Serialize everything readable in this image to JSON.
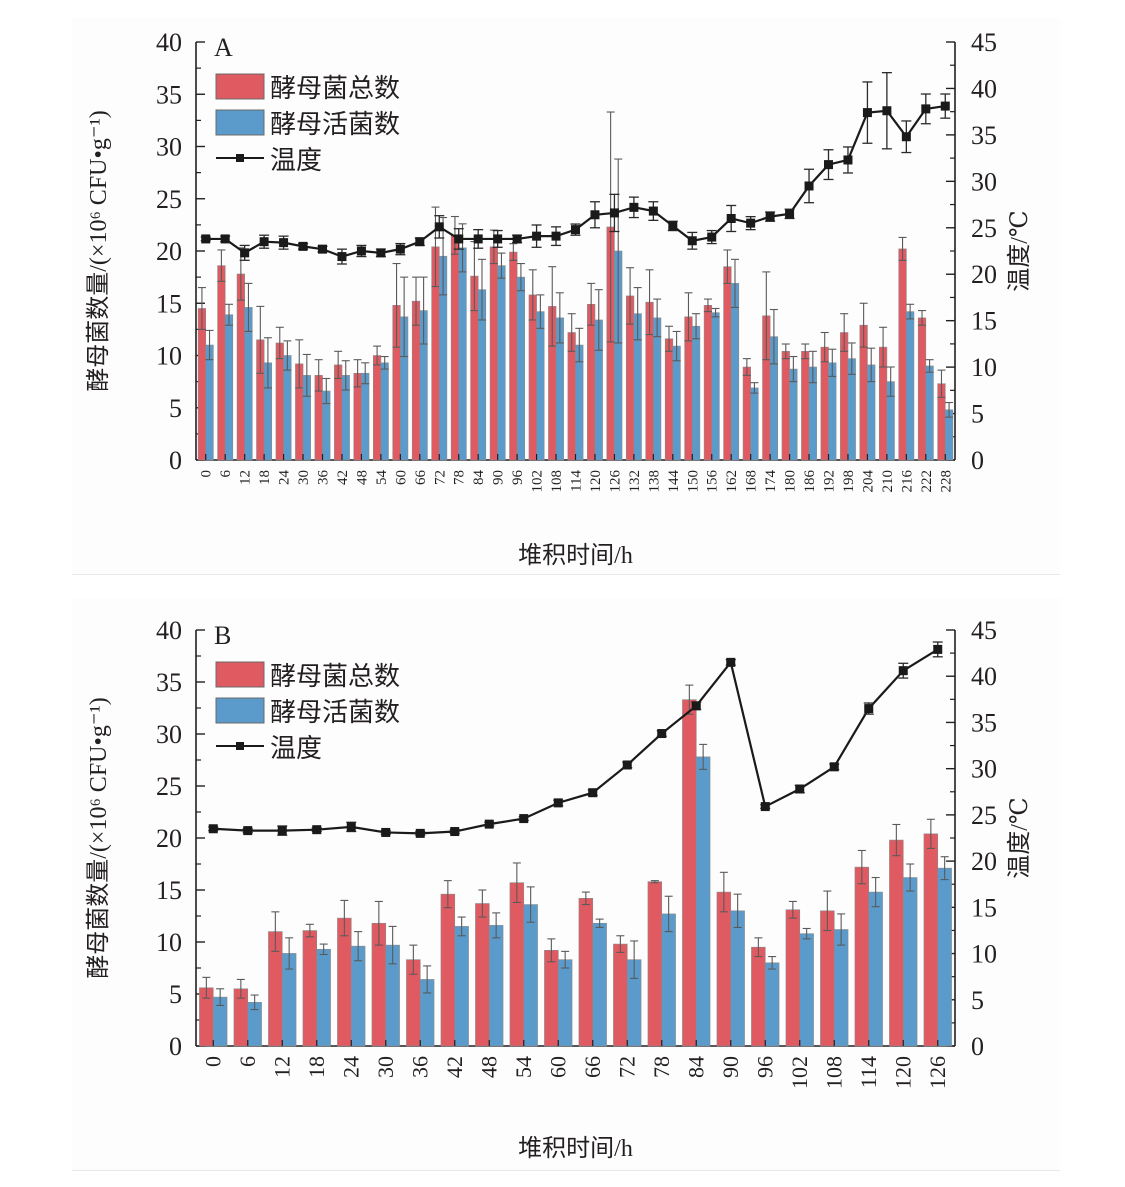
{
  "chart_data": [
    {
      "type": "bar",
      "panel_label": "A",
      "title": "",
      "xlabel": "堆积时间/h",
      "ylabel": "酵母菌数量/(×10⁶ CFU•g⁻¹)",
      "y2label": "温度/℃",
      "ylim": [
        0,
        40
      ],
      "y2lim": [
        0,
        45
      ],
      "yticks": [
        "0",
        "5",
        "10",
        "15",
        "20",
        "25",
        "30",
        "35",
        "40"
      ],
      "y2ticks": [
        "0",
        "5",
        "10",
        "15",
        "20",
        "25",
        "30",
        "35",
        "40",
        "45"
      ],
      "legend_position": "top-left",
      "grid": false,
      "categories": [
        "0",
        "6",
        "12",
        "18",
        "24",
        "30",
        "36",
        "42",
        "48",
        "54",
        "60",
        "66",
        "72",
        "78",
        "84",
        "90",
        "96",
        "102",
        "108",
        "114",
        "120",
        "126",
        "132",
        "138",
        "144",
        "150",
        "156",
        "162",
        "168",
        "174",
        "180",
        "186",
        "192",
        "198",
        "204",
        "210",
        "216",
        "222",
        "228"
      ],
      "series": [
        {
          "name": "酵母菌总数",
          "type": "bar",
          "axis": "left",
          "color": "#e05a62",
          "values": [
            14.5,
            18.6,
            17.8,
            11.5,
            11.2,
            9.2,
            8.1,
            9.1,
            8.3,
            10.0,
            14.8,
            15.2,
            20.4,
            21.5,
            17.6,
            20.4,
            19.9,
            15.8,
            14.7,
            12.2,
            14.9,
            22.3,
            15.7,
            15.1,
            11.6,
            13.7,
            14.8,
            18.5,
            8.9,
            13.8,
            10.4,
            10.4,
            10.8,
            12.2,
            12.9,
            10.8,
            20.2,
            13.6,
            7.3
          ],
          "errors": [
            2.0,
            1.5,
            2.5,
            3.2,
            1.5,
            2.3,
            1.5,
            1.3,
            1.3,
            0.9,
            4.0,
            2.3,
            3.8,
            1.8,
            3.3,
            1.6,
            0.8,
            2.4,
            3.8,
            1.8,
            2.0,
            11.0,
            2.7,
            3.1,
            1.2,
            2.3,
            0.6,
            1.6,
            0.8,
            4.2,
            0.7,
            0.7,
            1.4,
            1.8,
            2.1,
            1.9,
            1.1,
            0.7,
            1.3
          ]
        },
        {
          "name": "酵母活菌数",
          "type": "bar",
          "axis": "left",
          "color": "#5b9bcb",
          "values": [
            11.0,
            13.9,
            14.6,
            9.3,
            10.0,
            8.1,
            6.6,
            8.1,
            8.3,
            9.3,
            13.7,
            14.3,
            19.5,
            20.3,
            16.3,
            18.6,
            17.5,
            14.2,
            13.6,
            11.0,
            13.4,
            20.0,
            14.0,
            13.6,
            10.9,
            12.8,
            14.1,
            16.9,
            6.9,
            11.8,
            8.7,
            8.9,
            9.3,
            9.7,
            9.1,
            7.5,
            14.2,
            9.0,
            4.8
          ],
          "errors": [
            1.4,
            1.0,
            2.3,
            2.4,
            1.4,
            2.0,
            1.2,
            1.4,
            1.0,
            0.6,
            3.8,
            3.2,
            3.7,
            2.3,
            2.9,
            1.2,
            1.3,
            1.6,
            2.4,
            1.6,
            2.9,
            8.8,
            2.5,
            1.8,
            1.4,
            1.2,
            0.4,
            2.3,
            0.5,
            2.6,
            1.2,
            1.5,
            1.3,
            1.5,
            1.6,
            1.4,
            0.7,
            0.6,
            0.7
          ]
        },
        {
          "name": "温度",
          "type": "line",
          "axis": "right",
          "color": "#1a1a1a",
          "values": [
            23.8,
            23.8,
            22.3,
            23.5,
            23.4,
            23.0,
            22.7,
            21.9,
            22.5,
            22.3,
            22.7,
            23.5,
            25.1,
            23.8,
            23.8,
            23.8,
            23.8,
            24.1,
            24.1,
            24.8,
            26.4,
            26.6,
            27.2,
            26.8,
            25.2,
            23.6,
            24.0,
            26.0,
            25.5,
            26.2,
            26.5,
            29.5,
            31.8,
            32.3,
            37.4,
            37.6,
            34.8,
            37.8,
            38.1
          ],
          "errors": [
            0.2,
            0.3,
            0.8,
            0.7,
            0.7,
            0.3,
            0.3,
            0.8,
            0.6,
            0.4,
            0.6,
            0.4,
            1.2,
            1.1,
            1.0,
            0.9,
            0.4,
            1.2,
            1.0,
            0.6,
            1.4,
            2.0,
            1.1,
            1.0,
            0.5,
            0.9,
            0.7,
            1.4,
            0.7,
            0.5,
            0.5,
            1.8,
            1.6,
            1.4,
            3.3,
            4.1,
            1.7,
            1.6,
            1.3
          ]
        }
      ]
    },
    {
      "type": "bar",
      "panel_label": "B",
      "title": "",
      "xlabel": "堆积时间/h",
      "ylabel": "酵母菌数量/(×10⁶ CFU•g⁻¹)",
      "y2label": "温度/℃",
      "ylim": [
        0,
        40
      ],
      "y2lim": [
        0,
        45
      ],
      "yticks": [
        "0",
        "5",
        "10",
        "15",
        "20",
        "25",
        "30",
        "35",
        "40"
      ],
      "y2ticks": [
        "0",
        "5",
        "10",
        "15",
        "20",
        "25",
        "30",
        "35",
        "40",
        "45"
      ],
      "legend_position": "top-left",
      "grid": false,
      "categories": [
        "0",
        "6",
        "12",
        "18",
        "24",
        "30",
        "36",
        "42",
        "48",
        "54",
        "60",
        "66",
        "72",
        "78",
        "84",
        "90",
        "96",
        "102",
        "108",
        "114",
        "120",
        "126"
      ],
      "series": [
        {
          "name": "酵母菌总数",
          "type": "bar",
          "axis": "left",
          "color": "#e05a62",
          "values": [
            5.6,
            5.5,
            11.0,
            11.1,
            12.3,
            11.8,
            8.3,
            14.6,
            13.7,
            15.7,
            9.2,
            14.2,
            9.8,
            15.8,
            33.3,
            14.8,
            9.5,
            13.1,
            13.0,
            17.2,
            19.8,
            20.4
          ],
          "errors": [
            1.0,
            0.9,
            1.9,
            0.6,
            1.7,
            2.1,
            1.4,
            1.3,
            1.3,
            1.9,
            1.1,
            0.6,
            0.8,
            0.1,
            1.4,
            1.9,
            0.9,
            0.8,
            1.9,
            1.6,
            1.5,
            1.4
          ]
        },
        {
          "name": "酵母活菌数",
          "type": "bar",
          "axis": "left",
          "color": "#5b9bcb",
          "values": [
            4.7,
            4.2,
            8.9,
            9.3,
            9.6,
            9.7,
            6.4,
            11.5,
            11.6,
            13.6,
            8.3,
            11.8,
            8.3,
            12.7,
            27.8,
            13.0,
            8.0,
            10.8,
            11.2,
            14.8,
            16.2,
            17.1
          ],
          "errors": [
            0.8,
            0.7,
            1.5,
            0.5,
            1.4,
            1.8,
            1.3,
            0.9,
            1.2,
            1.7,
            0.8,
            0.4,
            1.8,
            1.7,
            1.2,
            1.6,
            0.6,
            0.5,
            1.5,
            1.4,
            1.3,
            1.1
          ]
        },
        {
          "name": "温度",
          "type": "line",
          "axis": "right",
          "color": "#1a1a1a",
          "values": [
            23.5,
            23.3,
            23.3,
            23.4,
            23.7,
            23.1,
            23.0,
            23.2,
            24.0,
            24.6,
            26.3,
            27.4,
            30.4,
            33.8,
            36.8,
            41.5,
            25.9,
            27.8,
            30.2,
            36.5,
            40.6,
            42.9
          ],
          "errors": [
            0.2,
            0.2,
            0.5,
            0.2,
            0.5,
            0.2,
            0.2,
            0.2,
            0.2,
            0.2,
            0.3,
            0.3,
            0.3,
            0.3,
            0.4,
            0.3,
            0.2,
            0.4,
            0.3,
            0.6,
            0.8,
            0.8
          ]
        }
      ]
    }
  ]
}
